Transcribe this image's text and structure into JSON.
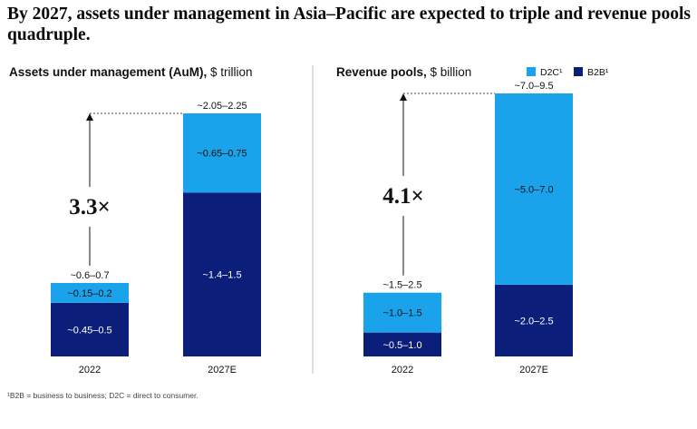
{
  "headline": "By 2027, assets under management in Asia–Pacific are expected to triple and revenue pools quadruple.",
  "footnote": "¹B2B = business to business; D2C = direct to consumer.",
  "colors": {
    "d2c": "#1aa3eb",
    "b2b": "#0b1f7a",
    "divider": "#bdbdbd"
  },
  "legend": [
    {
      "key": "d2c",
      "label": "D2C¹"
    },
    {
      "key": "b2b",
      "label": "B2B¹"
    }
  ],
  "chart_data": [
    {
      "type": "bar",
      "stacked": true,
      "title": "Assets under management (AuM),",
      "title_unit": " $ trillion",
      "categories": [
        "2022",
        "2027E"
      ],
      "series": [
        {
          "name": "B2B",
          "values": [
            0.475,
            1.45
          ],
          "labels": [
            "~0.45–0.5",
            "~1.4–1.5"
          ]
        },
        {
          "name": "D2C",
          "values": [
            0.175,
            0.7
          ],
          "labels": [
            "~0.15–0.2",
            "~0.65–0.75"
          ]
        }
      ],
      "totals": [
        "~0.6–0.7",
        "~2.05–2.25"
      ],
      "multiplier": "3.3×",
      "ylim": [
        0,
        2.15
      ]
    },
    {
      "type": "bar",
      "stacked": true,
      "title": "Revenue pools,",
      "title_unit": " $ billion",
      "categories": [
        "2022",
        "2027E"
      ],
      "series": [
        {
          "name": "B2B",
          "values": [
            0.75,
            2.25
          ],
          "labels": [
            "~0.5–1.0",
            "~2.0–2.5"
          ]
        },
        {
          "name": "D2C",
          "values": [
            1.25,
            6.0
          ],
          "labels": [
            "~1.0–1.5",
            "~5.0–7.0"
          ]
        }
      ],
      "totals": [
        "~1.5–2.5",
        "~7.0–9.5"
      ],
      "multiplier": "4.1×",
      "ylim": [
        0,
        8.25
      ]
    }
  ]
}
